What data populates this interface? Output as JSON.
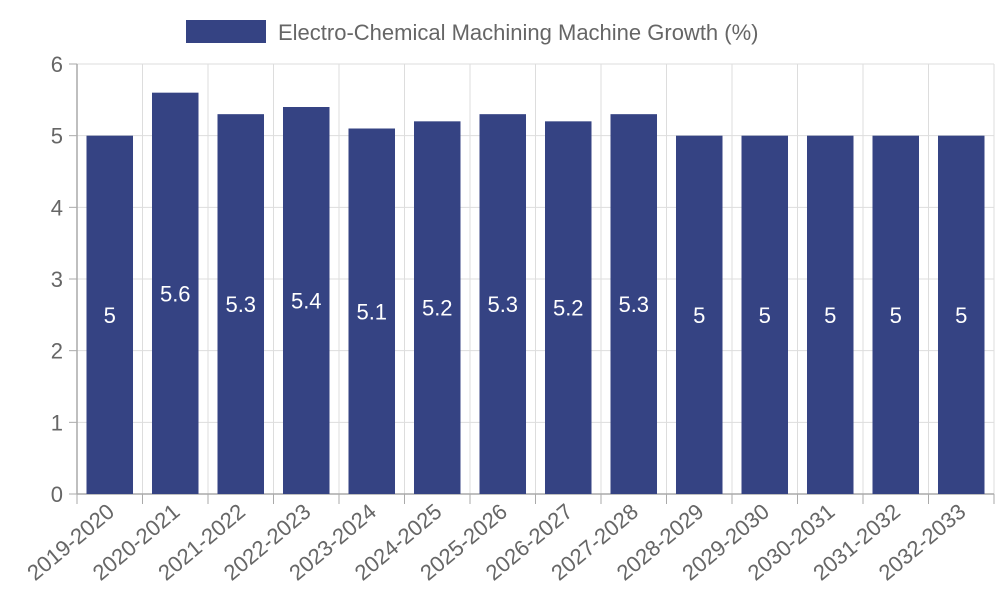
{
  "chart_data": {
    "type": "bar",
    "categories": [
      "2019-2020",
      "2020-2021",
      "2021-2022",
      "2022-2023",
      "2023-2024",
      "2024-2025",
      "2025-2026",
      "2026-2027",
      "2027-2028",
      "2028-2029",
      "2029-2030",
      "2030-2031",
      "2031-2032",
      "2032-2033"
    ],
    "series": [
      {
        "name": "Electro-Chemical Machining Machine Growth (%)",
        "values": [
          5,
          5.6,
          5.3,
          5.4,
          5.1,
          5.2,
          5.3,
          5.2,
          5.3,
          5,
          5,
          5,
          5,
          5
        ]
      }
    ],
    "ylim": [
      0,
      6
    ],
    "yticks": [
      0,
      1,
      2,
      3,
      4,
      5,
      6
    ],
    "grid": true,
    "legend": "top-center",
    "colors": {
      "bar": "#354383",
      "bar_label": "#ffffff",
      "grid": "#dddddd",
      "axis": "#aaaaaa",
      "text": "#666666"
    }
  }
}
